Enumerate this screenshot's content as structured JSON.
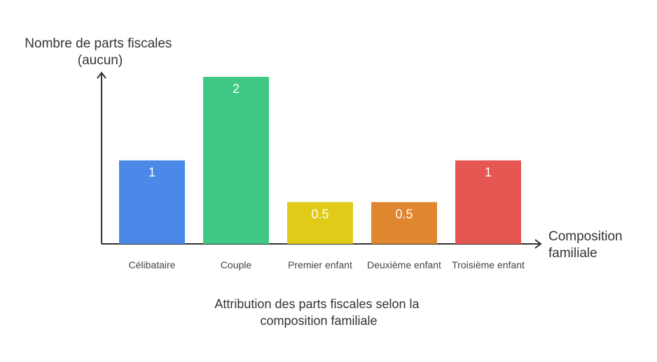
{
  "chart_data": {
    "type": "bar",
    "title_lines": [
      "Attribution des parts fiscales selon la",
      "composition familiale"
    ],
    "ylabel_lines": [
      "Nombre de parts fiscales",
      "(aucun)"
    ],
    "xlabel_lines": [
      "Composition",
      "familiale"
    ],
    "categories": [
      "Célibataire",
      "Couple",
      "Premier enfant",
      "Deuxième enfant",
      "Troisième enfant"
    ],
    "values": [
      1,
      2,
      0.5,
      0.5,
      1
    ],
    "value_labels": [
      "1",
      "2",
      "0.5",
      "0.5",
      "1"
    ],
    "colors": [
      "#4b89e8",
      "#3ec884",
      "#e0cb18",
      "#e0862f",
      "#e55752"
    ],
    "ylim": [
      0,
      2
    ],
    "grid": false,
    "legend": "none"
  }
}
